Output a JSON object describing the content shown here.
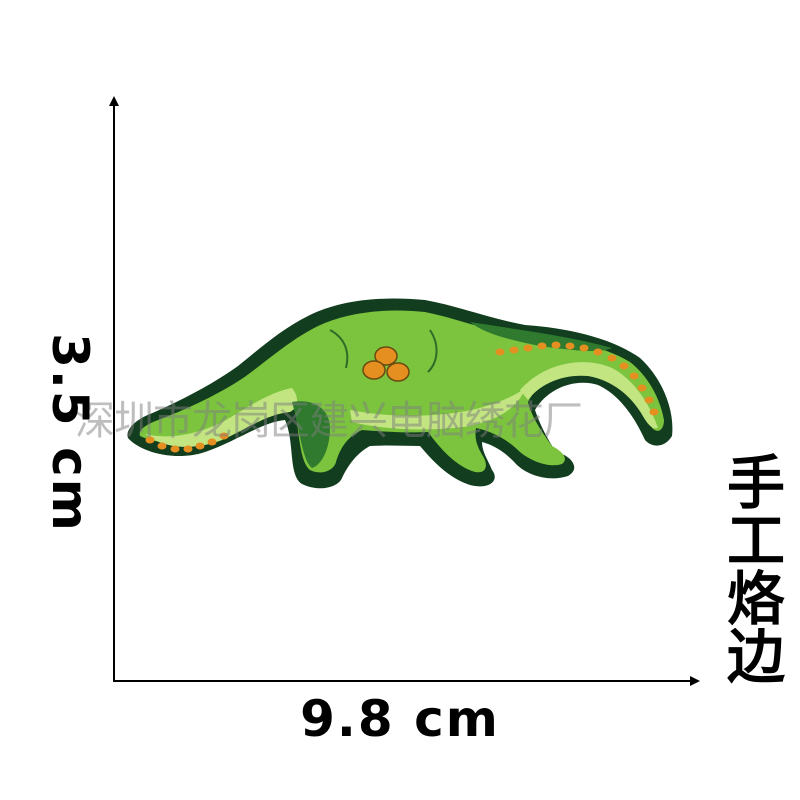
{
  "height_label": "3.5 cm",
  "width_label": "9.8 cm",
  "side_note": "手工烙边",
  "watermark": "深圳市龙岗区建兴电脑绣花厂",
  "patch": {
    "subject": "green embroidered sauropod dinosaur patch",
    "colors": {
      "outline": "#123d1e",
      "body": "#7cc43e",
      "highlight": "#c2e582",
      "shadow": "#2f7a2f",
      "spots": "#e58f20"
    }
  },
  "colors": {
    "ink": "#000000",
    "background": "#ffffff"
  }
}
